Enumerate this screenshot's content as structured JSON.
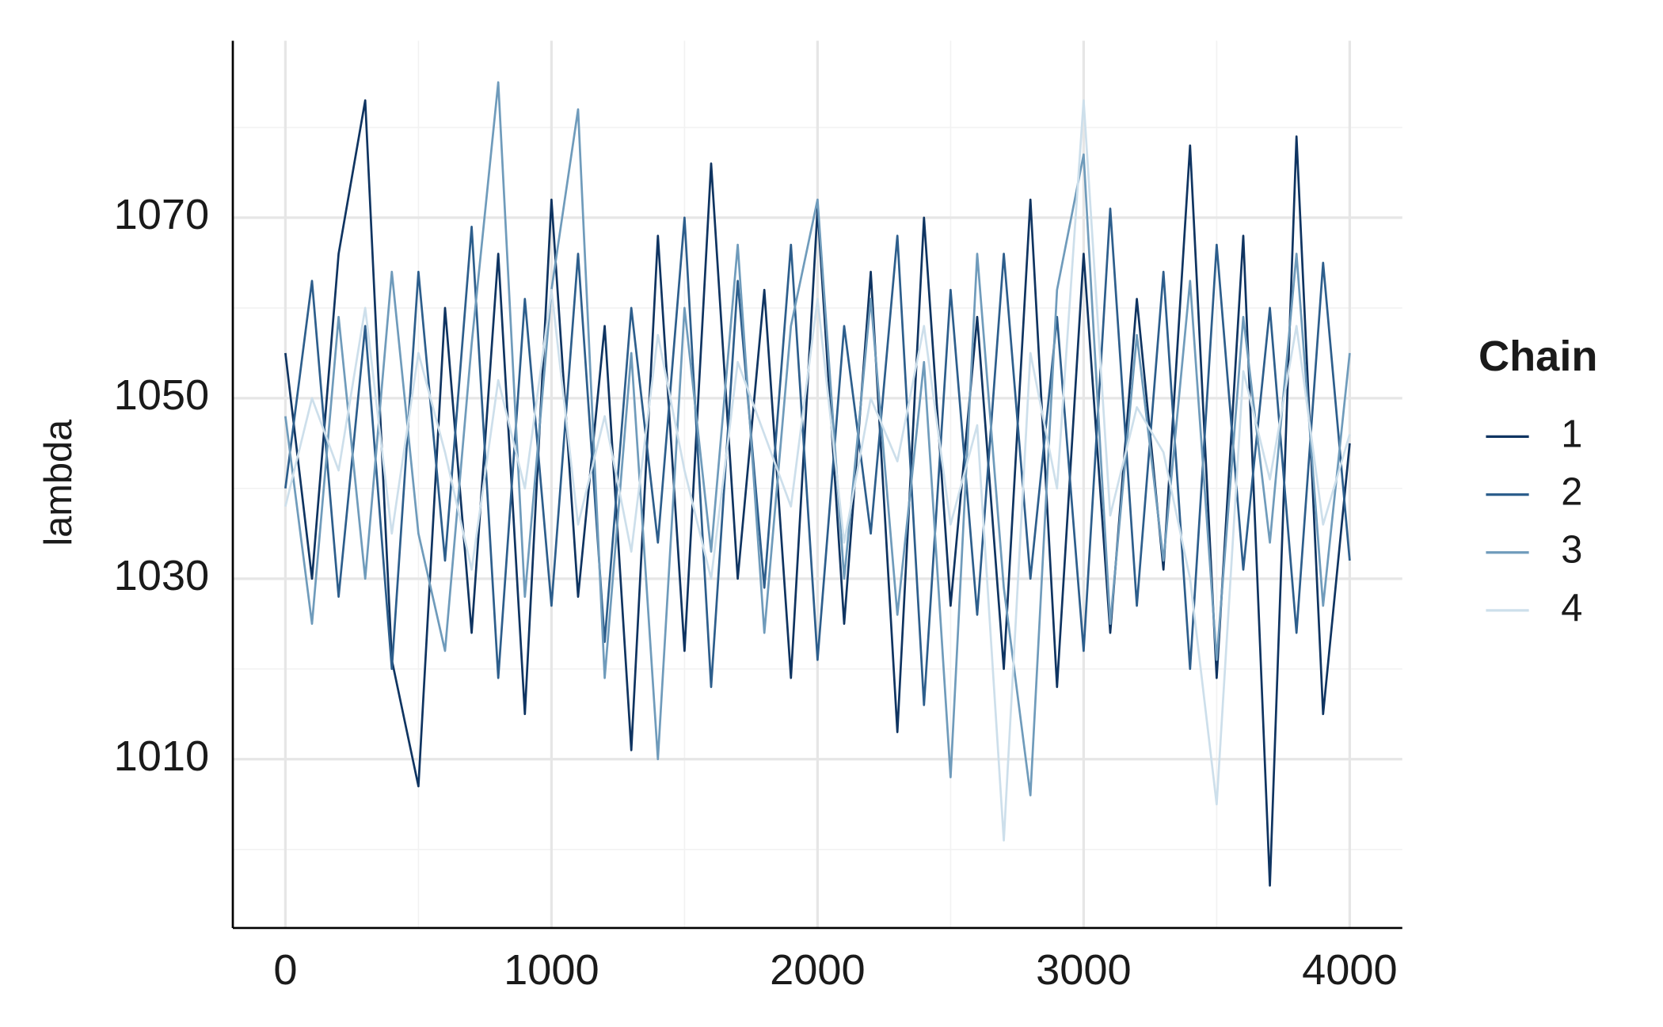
{
  "chart_data": {
    "type": "line",
    "y_label": "lambda",
    "legend_title": "Chain",
    "legend_position": "right",
    "grid": true,
    "x": [
      0,
      100,
      200,
      300,
      400,
      500,
      600,
      700,
      800,
      900,
      1000,
      1100,
      1200,
      1300,
      1400,
      1500,
      1600,
      1700,
      1800,
      1900,
      2000,
      2100,
      2200,
      2300,
      2400,
      2500,
      2600,
      2700,
      2800,
      2900,
      3000,
      3100,
      3200,
      3300,
      3400,
      3500,
      3600,
      3700,
      3800,
      3900,
      4000
    ],
    "xlim": [
      -197.6,
      4197.6
    ],
    "xticks": [
      0,
      1000,
      2000,
      3000,
      4000
    ],
    "xminor": [
      500,
      1500,
      2500,
      3500
    ],
    "ylim": [
      991.3,
      1089.6
    ],
    "yticks": [
      1010,
      1030,
      1050,
      1070
    ],
    "yminor": [
      1000,
      1020,
      1040,
      1060,
      1080
    ],
    "series": [
      {
        "name": "1",
        "color": "#0f3461",
        "values": [
          1055,
          1030,
          1066,
          1083,
          1021,
          1007,
          1060,
          1024,
          1066,
          1015,
          1072,
          1028,
          1058,
          1011,
          1068,
          1022,
          1076,
          1030,
          1062,
          1019,
          1071,
          1025,
          1064,
          1013,
          1070,
          1027,
          1059,
          1020,
          1072,
          1018,
          1066,
          1024,
          1061,
          1031,
          1078,
          1019,
          1068,
          996,
          1079,
          1015,
          1045
        ]
      },
      {
        "name": "2",
        "color": "#2d5e8c",
        "values": [
          1040,
          1063,
          1028,
          1058,
          1020,
          1064,
          1032,
          1069,
          1019,
          1061,
          1027,
          1066,
          1023,
          1060,
          1034,
          1070,
          1018,
          1063,
          1029,
          1067,
          1021,
          1058,
          1035,
          1068,
          1016,
          1062,
          1026,
          1066,
          1030,
          1059,
          1022,
          1071,
          1027,
          1064,
          1020,
          1067,
          1031,
          1060,
          1024,
          1065,
          1032
        ]
      },
      {
        "name": "3",
        "color": "#6f9bbb",
        "values": [
          1048,
          1025,
          1059,
          1030,
          1064,
          1035,
          1022,
          1056,
          1085,
          1028,
          1062,
          1082,
          1019,
          1055,
          1010,
          1060,
          1033,
          1067,
          1024,
          1058,
          1072,
          1030,
          1061,
          1026,
          1054,
          1008,
          1066,
          1029,
          1006,
          1062,
          1077,
          1025,
          1057,
          1032,
          1063,
          1021,
          1059,
          1034,
          1066,
          1027,
          1055
        ]
      },
      {
        "name": "4",
        "color": "#cddfeb",
        "values": [
          1038,
          1050,
          1042,
          1060,
          1035,
          1055,
          1044,
          1031,
          1052,
          1040,
          1062,
          1036,
          1048,
          1033,
          1057,
          1042,
          1030,
          1054,
          1046,
          1038,
          1061,
          1034,
          1050,
          1043,
          1058,
          1036,
          1047,
          1001,
          1055,
          1040,
          1083,
          1037,
          1049,
          1044,
          1030,
          1005,
          1053,
          1041,
          1058,
          1036,
          1046
        ]
      }
    ]
  }
}
